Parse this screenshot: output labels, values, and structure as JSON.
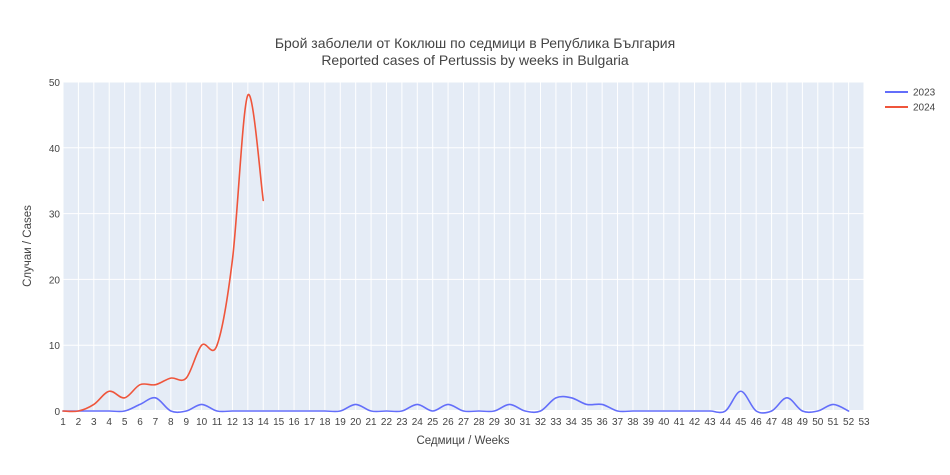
{
  "chart_data": {
    "type": "line",
    "title": "Брой заболели от Коклюш по седмици в Република България",
    "subtitle": "Reported cases of Pertussis by weeks in Bulgaria",
    "xlabel": "Седмици / Weeks",
    "ylabel": "Случаи / Cases",
    "xlim": [
      1,
      53
    ],
    "ylim": [
      0,
      50
    ],
    "x_ticks": [
      1,
      2,
      3,
      4,
      5,
      6,
      7,
      8,
      9,
      10,
      11,
      12,
      13,
      14,
      15,
      16,
      17,
      18,
      19,
      20,
      21,
      22,
      23,
      24,
      25,
      26,
      27,
      28,
      29,
      30,
      31,
      32,
      33,
      34,
      35,
      36,
      37,
      38,
      39,
      40,
      41,
      42,
      43,
      44,
      45,
      46,
      47,
      48,
      49,
      50,
      51,
      52,
      53
    ],
    "y_ticks": [
      0,
      10,
      20,
      30,
      40,
      50
    ],
    "grid": true,
    "legend_position": "top-right",
    "series": [
      {
        "name": "2023",
        "color": "#636efa",
        "x": [
          1,
          2,
          3,
          4,
          5,
          6,
          7,
          8,
          9,
          10,
          11,
          12,
          13,
          14,
          15,
          16,
          17,
          18,
          19,
          20,
          21,
          22,
          23,
          24,
          25,
          26,
          27,
          28,
          29,
          30,
          31,
          32,
          33,
          34,
          35,
          36,
          37,
          38,
          39,
          40,
          41,
          42,
          43,
          44,
          45,
          46,
          47,
          48,
          49,
          50,
          51,
          52
        ],
        "y": [
          0,
          0,
          0,
          0,
          0,
          1,
          2,
          0,
          0,
          1,
          0,
          0,
          0,
          0,
          0,
          0,
          0,
          0,
          0,
          1,
          0,
          0,
          0,
          1,
          0,
          1,
          0,
          0,
          0,
          1,
          0,
          0,
          2,
          2,
          1,
          1,
          0,
          0,
          0,
          0,
          0,
          0,
          0,
          0,
          3,
          0,
          0,
          2,
          0,
          0,
          1,
          0
        ]
      },
      {
        "name": "2024",
        "color": "#ef553b",
        "x": [
          1,
          2,
          3,
          4,
          5,
          6,
          7,
          8,
          9,
          10,
          11,
          12,
          13,
          14
        ],
        "y": [
          0,
          0,
          1,
          3,
          2,
          4,
          4,
          5,
          5,
          10,
          10,
          23,
          48,
          32
        ]
      }
    ]
  }
}
